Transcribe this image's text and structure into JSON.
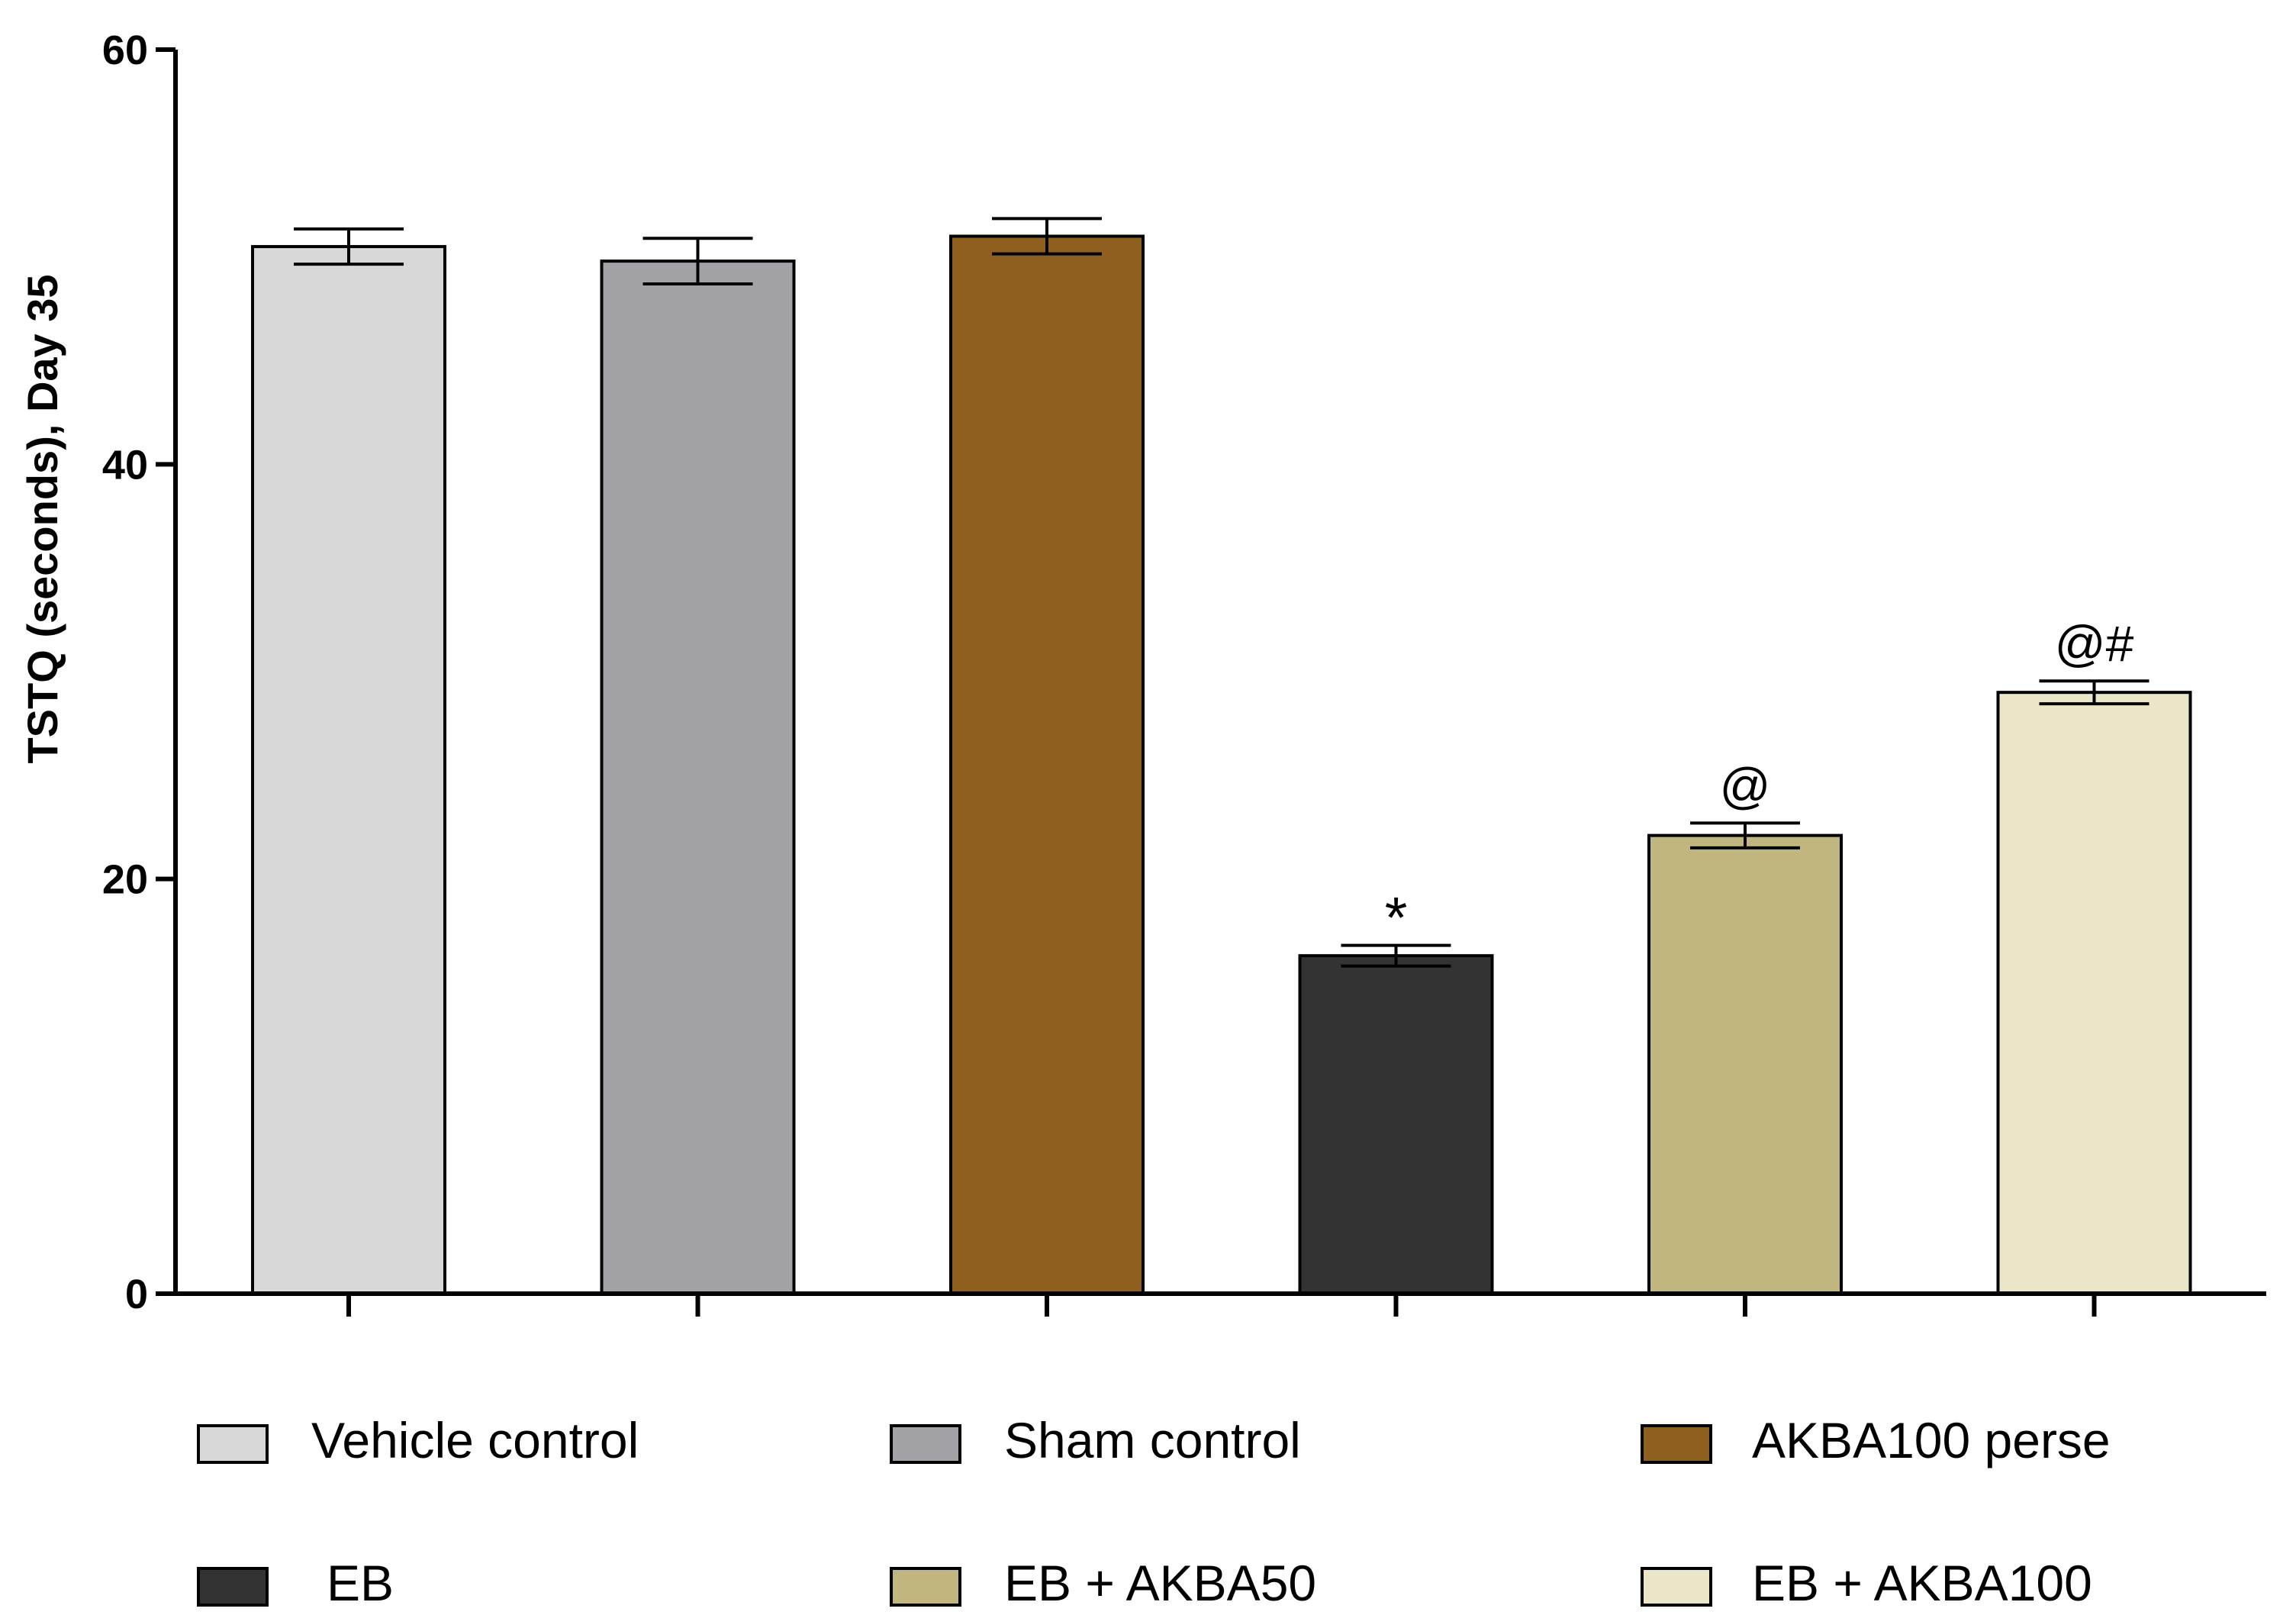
{
  "chart_data": {
    "type": "bar",
    "title": "",
    "xlabel": "",
    "ylabel": "TSTQ (seconds), Day 35",
    "ylim": [
      0,
      60
    ],
    "yticks": [
      0,
      20,
      40,
      60
    ],
    "ytick_labels": [
      "0",
      "20",
      "40",
      "60"
    ],
    "grid": false,
    "categories": [
      "Vehicle control",
      "Sham control",
      "AKBA100 perse",
      "EB",
      "EB + AKBA50",
      "EB + AKBA100"
    ],
    "values": [
      50.5,
      49.8,
      51.0,
      16.3,
      22.1,
      29.0
    ],
    "errors": [
      0.85,
      1.1,
      0.85,
      0.5,
      0.6,
      0.55
    ],
    "colors": [
      "#d8d8d8",
      "#a3a2a7",
      "#8f5f1f",
      "#333333",
      "#c1b67d",
      "#ece6c8"
    ],
    "annotations": [
      "",
      "",
      "",
      "*",
      "@",
      "@#"
    ],
    "legend": {
      "placement": "bottom",
      "entries": [
        "Vehicle control",
        "Sham control",
        "AKBA100 perse",
        "EB",
        "EB + AKBA50",
        "EB + AKBA100"
      ]
    }
  }
}
